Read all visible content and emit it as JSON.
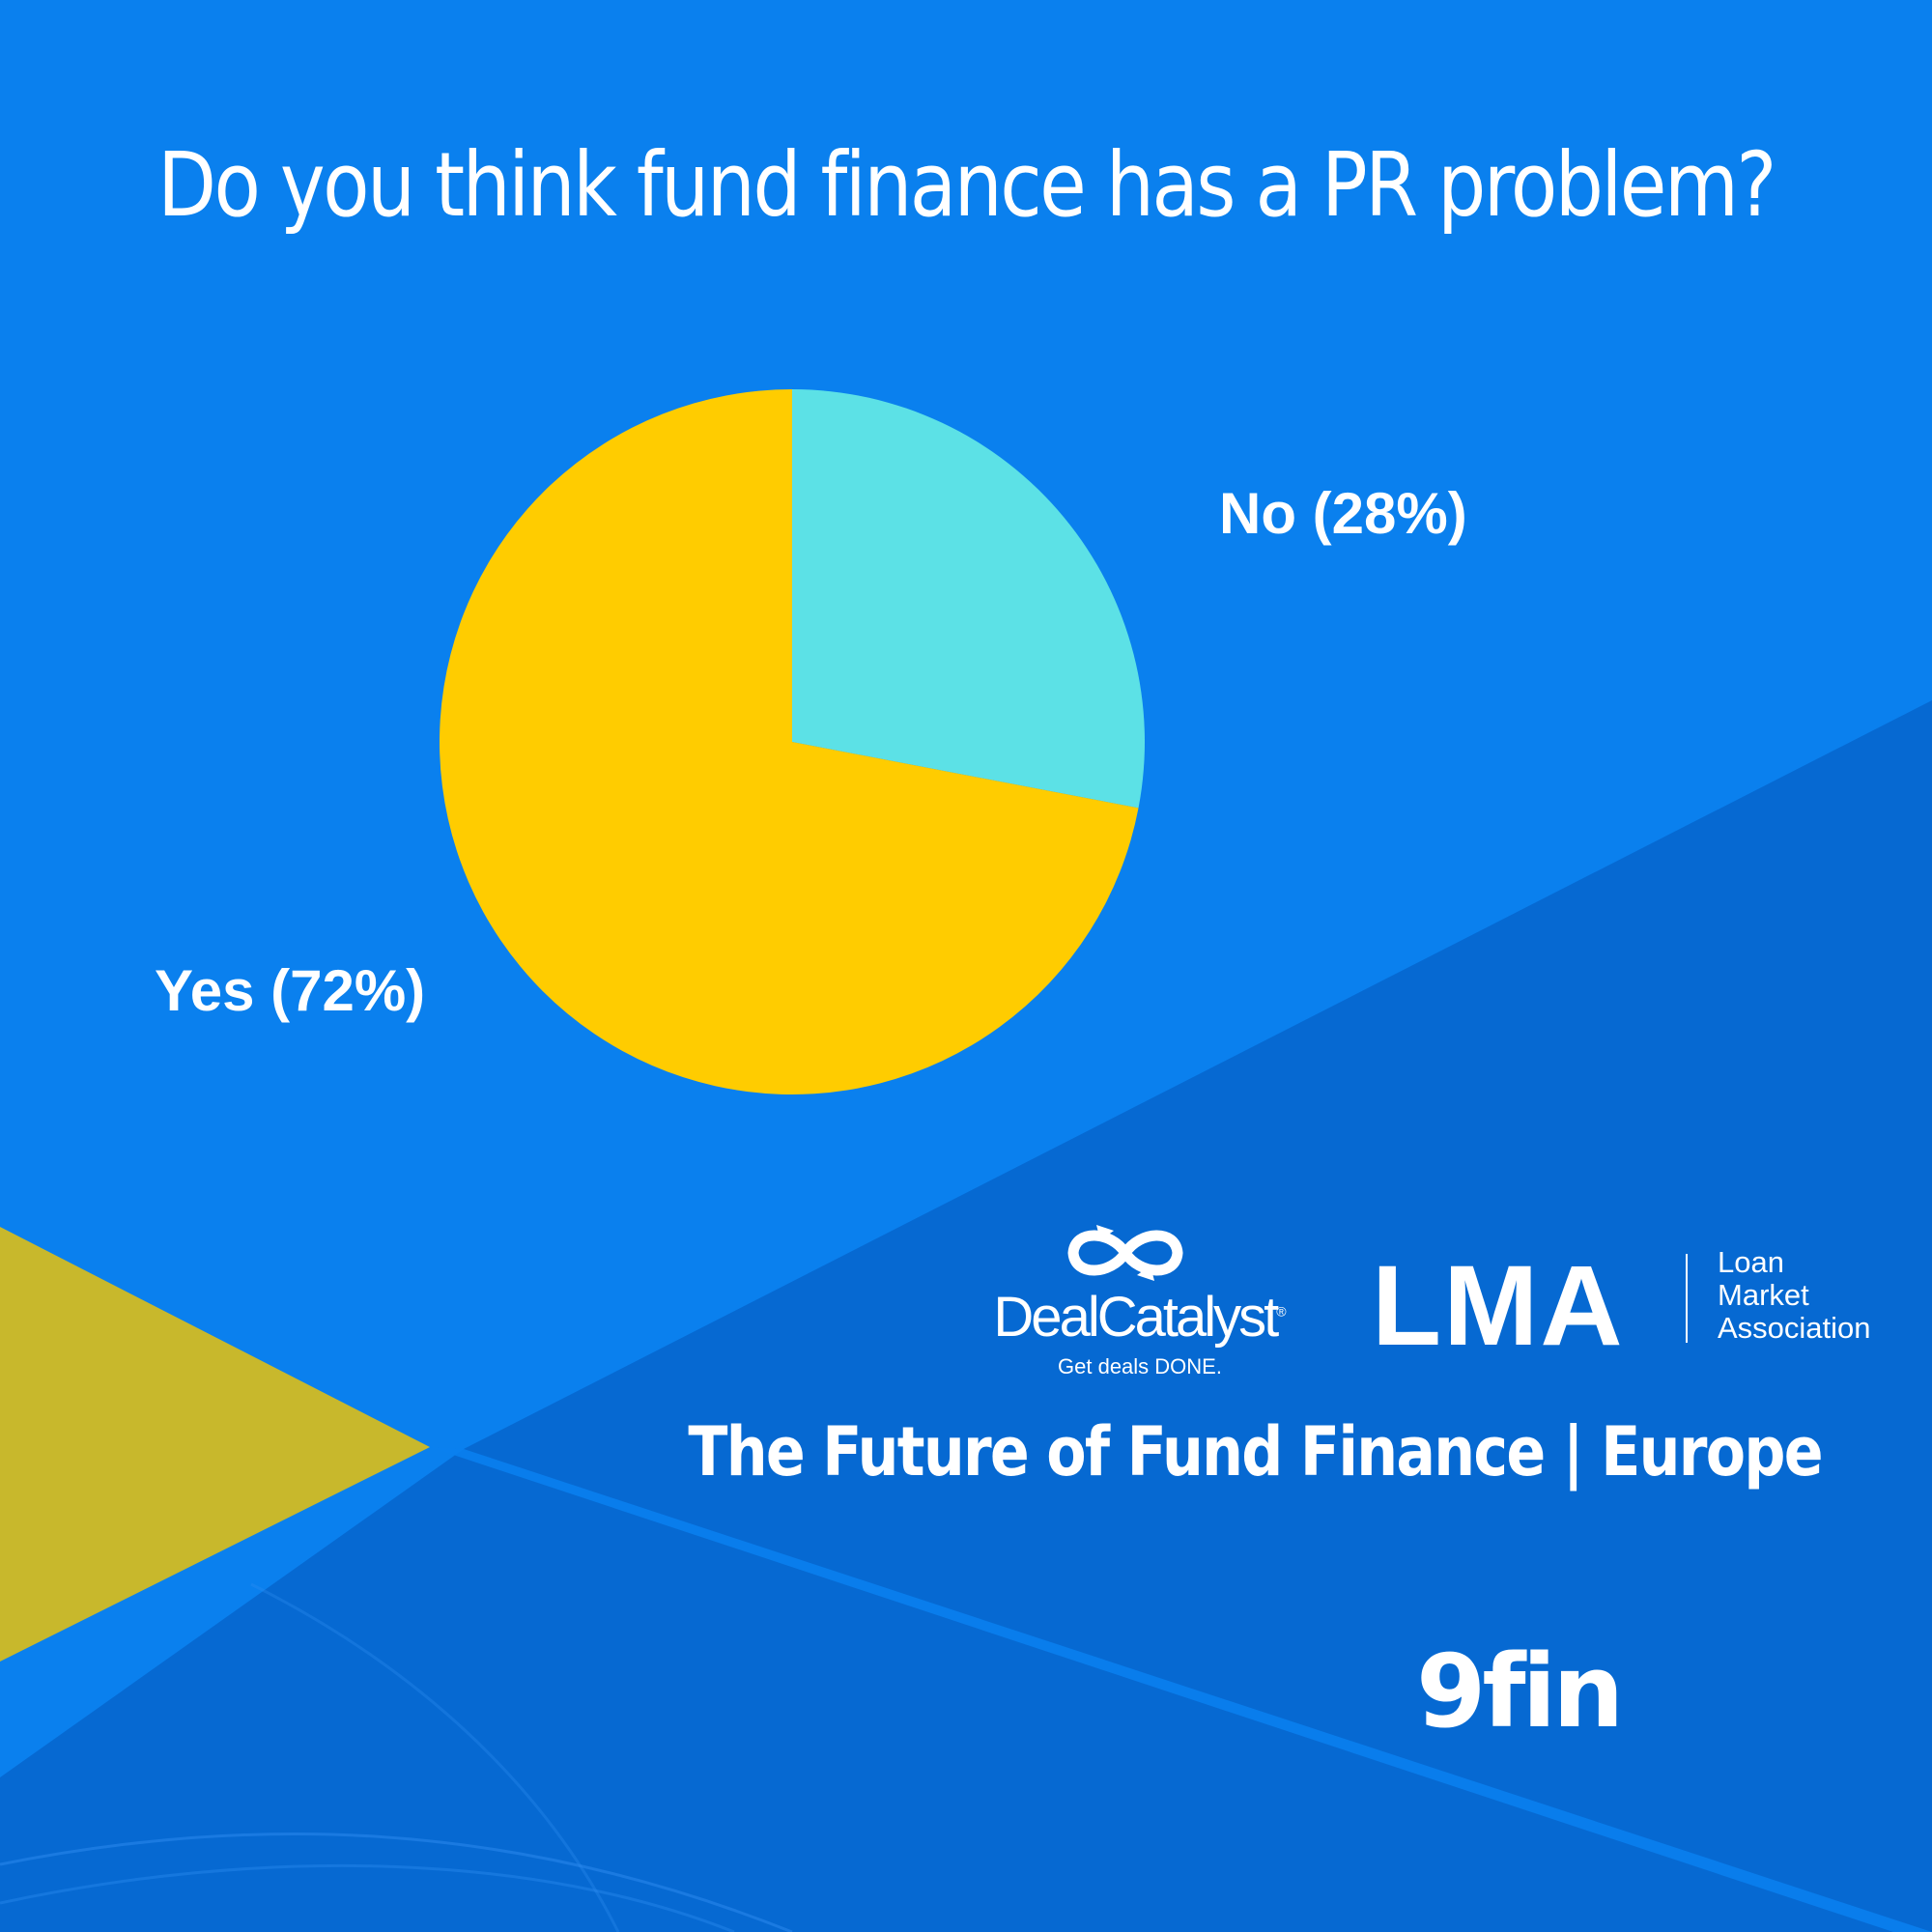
{
  "colors": {
    "background": "#0a80ee",
    "background_dark_band": "#0669d2",
    "gold_triangle": "#c8b82c",
    "yes_slice": "#ffcc00",
    "no_slice": "#5ce1e6",
    "text": "#ffffff"
  },
  "header": {
    "title": "Do you think fund finance has a PR problem?"
  },
  "chart_data": {
    "type": "pie",
    "title": "Do you think fund finance has a PR problem?",
    "slices": [
      {
        "label": "No (28%)",
        "category": "No",
        "value": 28,
        "color": "#5ce1e6"
      },
      {
        "label": "Yes (72%)",
        "category": "Yes",
        "value": 72,
        "color": "#ffcc00"
      }
    ],
    "start_angle_deg": 0,
    "direction": "clockwise"
  },
  "footer": {
    "event_title": "The Future of Fund Finance | Europe",
    "logos": {
      "dealcatalyst": {
        "icon": "infinity-arrows-icon",
        "wordmark": "DealCatalyst",
        "registered": "®",
        "tagline": "Get deals DONE."
      },
      "lma": {
        "mark": "LMA",
        "name": "Loan\nMarket\nAssociation"
      },
      "ninefin": {
        "wordmark": "9fin"
      }
    }
  }
}
